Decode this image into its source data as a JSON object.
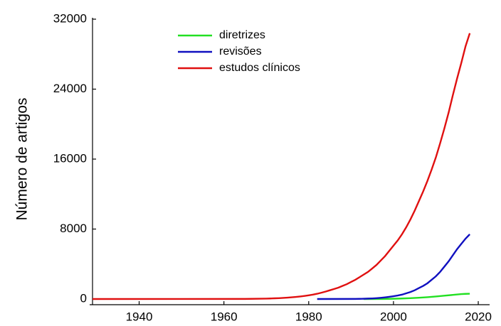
{
  "chart_data": {
    "type": "line",
    "ylabel": "Número de artigos",
    "xlim": [
      1929,
      2021
    ],
    "ylim": [
      0,
      32000
    ],
    "xticks": [
      1940,
      1960,
      1980,
      2000,
      2020
    ],
    "yticks": [
      0,
      8000,
      16000,
      24000,
      32000
    ],
    "legend": "top",
    "series": [
      {
        "name": "diretrizes",
        "color": "#22e022",
        "x": [
          1993,
          1998,
          2000,
          2002,
          2004,
          2006,
          2008,
          2010,
          2012,
          2014,
          2016,
          2017,
          2018
        ],
        "values": [
          0,
          10,
          30,
          60,
          100,
          150,
          210,
          290,
          380,
          470,
          560,
          590,
          600
        ]
      },
      {
        "name": "revisões",
        "color": "#1010c0",
        "x": [
          1982,
          1991,
          1992,
          1993,
          1994,
          1995,
          1996,
          1997,
          1998,
          1999,
          2000,
          2001,
          2002,
          2003,
          2004,
          2005,
          2006,
          2007,
          2008,
          2009,
          2010,
          2011,
          2012,
          2013,
          2014,
          2015,
          2016,
          2017,
          2018
        ],
        "values": [
          0,
          10,
          20,
          30,
          50,
          70,
          100,
          140,
          190,
          250,
          320,
          400,
          500,
          650,
          800,
          1000,
          1250,
          1500,
          1800,
          2200,
          2600,
          3100,
          3700,
          4300,
          5000,
          5700,
          6300,
          6900,
          7400
        ]
      },
      {
        "name": "estudos clínicos",
        "color": "#e01010",
        "x": [
          1929,
          1965,
          1970,
          1971,
          1972,
          1973,
          1974,
          1975,
          1976,
          1977,
          1978,
          1979,
          1980,
          1981,
          1982,
          1983,
          1984,
          1985,
          1986,
          1987,
          1988,
          1989,
          1990,
          1991,
          1992,
          1993,
          1994,
          1995,
          1996,
          1997,
          1998,
          1999,
          2000,
          2001,
          2002,
          2003,
          2004,
          2005,
          2006,
          2007,
          2008,
          2009,
          2010,
          2011,
          2012,
          2013,
          2014,
          2015,
          2016,
          2017,
          2018
        ],
        "values": [
          0,
          10,
          45,
          60,
          80,
          100,
          130,
          160,
          200,
          240,
          290,
          350,
          420,
          500,
          600,
          720,
          850,
          1000,
          1150,
          1300,
          1500,
          1700,
          1950,
          2200,
          2500,
          2800,
          3100,
          3500,
          3900,
          4400,
          4900,
          5500,
          6100,
          6700,
          7400,
          8200,
          9100,
          10100,
          11200,
          12300,
          13500,
          14800,
          16200,
          17800,
          19500,
          21300,
          23300,
          25200,
          27000,
          28900,
          30400
        ]
      }
    ]
  }
}
